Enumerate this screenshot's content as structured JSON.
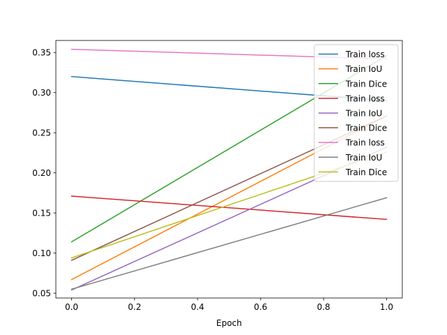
{
  "chart_data": {
    "type": "line",
    "title": "",
    "xlabel": "Epoch",
    "ylabel": "",
    "xlim": [
      -0.05,
      1.05
    ],
    "ylim": [
      0.044,
      0.365
    ],
    "xticks": [
      0.0,
      0.2,
      0.4,
      0.6,
      0.8,
      1.0
    ],
    "xtick_labels": [
      "0.0",
      "0.2",
      "0.4",
      "0.6",
      "0.8",
      "1.0"
    ],
    "yticks": [
      0.05,
      0.1,
      0.15,
      0.2,
      0.25,
      0.3,
      0.35
    ],
    "ytick_labels": [
      "0.05",
      "0.10",
      "0.15",
      "0.20",
      "0.25",
      "0.30",
      "0.35"
    ],
    "grid": false,
    "legend_position": "top-right",
    "series": [
      {
        "name": "Train loss",
        "color": "#1f77b4",
        "x": [
          0,
          1
        ],
        "y": [
          0.32,
          0.29
        ]
      },
      {
        "name": "Train IoU",
        "color": "#ff7f0e",
        "x": [
          0,
          1
        ],
        "y": [
          0.067,
          0.271
        ]
      },
      {
        "name": "Train Dice",
        "color": "#2ca02c",
        "x": [
          0,
          1
        ],
        "y": [
          0.114,
          0.346
        ]
      },
      {
        "name": "Train loss",
        "color": "#d62728",
        "x": [
          0,
          1
        ],
        "y": [
          0.171,
          0.142
        ]
      },
      {
        "name": "Train IoU",
        "color": "#9467bd",
        "x": [
          0,
          1
        ],
        "y": [
          0.054,
          0.232
        ]
      },
      {
        "name": "Train Dice",
        "color": "#8c564b",
        "x": [
          0,
          1
        ],
        "y": [
          0.091,
          0.271
        ]
      },
      {
        "name": "Train loss",
        "color": "#e377c2",
        "x": [
          0,
          1
        ],
        "y": [
          0.354,
          0.342
        ]
      },
      {
        "name": "Train IoU",
        "color": "#7f7f7f",
        "x": [
          0,
          1
        ],
        "y": [
          0.055,
          0.169
        ]
      },
      {
        "name": "Train Dice",
        "color": "#bcbd22",
        "x": [
          0,
          1
        ],
        "y": [
          0.094,
          0.226
        ]
      }
    ]
  }
}
